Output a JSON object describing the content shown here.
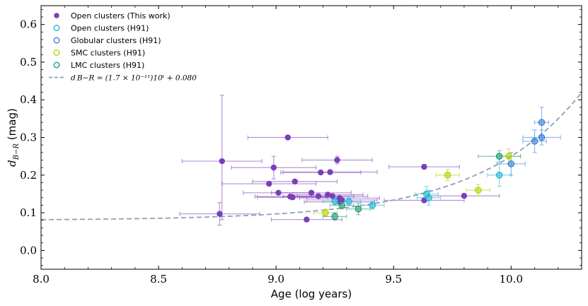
{
  "chart_data": {
    "type": "scatter",
    "xlabel": "Age (log years)",
    "ylabel": "d_{B-R} (mag)",
    "ylabel_main": "d",
    "ylabel_sub": "B−R",
    "ylabel_unit": " (mag)",
    "xlim": [
      8.0,
      10.3
    ],
    "ylim": [
      -0.05,
      0.65
    ],
    "xticks": [
      8.0,
      8.5,
      9.0,
      9.5,
      10.0
    ],
    "xtick_labels": [
      "8.0",
      "8.5",
      "9.0",
      "9.5",
      "10.0"
    ],
    "yticks": [
      0.0,
      0.1,
      0.2,
      0.3,
      0.4,
      0.5,
      0.6
    ],
    "ytick_labels": [
      "0.0",
      "0.1",
      "0.2",
      "0.3",
      "0.4",
      "0.5",
      "0.6"
    ],
    "legend_position": "top-left",
    "series": [
      {
        "name": "Open clusters (This work)",
        "color": "#7b3fb8",
        "marker": "filled",
        "points": [
          {
            "x": 9.05,
            "y": 0.3,
            "xerr": [
              0.17,
              0.17
            ],
            "yerr": [
              0.004,
              0.004
            ]
          },
          {
            "x": 8.77,
            "y": 0.237,
            "xerr": [
              0.17,
              0.17
            ],
            "yerr": [
              0.155,
              0.175
            ]
          },
          {
            "x": 8.76,
            "y": 0.097,
            "xerr": [
              0.17,
              0.17
            ],
            "yerr": [
              0.03,
              0.03
            ]
          },
          {
            "x": 8.99,
            "y": 0.22,
            "xerr": [
              0.18,
              0.18
            ],
            "yerr": [
              0.03,
              0.03
            ]
          },
          {
            "x": 9.26,
            "y": 0.24,
            "xerr": [
              0.15,
              0.15
            ],
            "yerr": [
              0.01,
              0.01
            ]
          },
          {
            "x": 9.19,
            "y": 0.207,
            "xerr": [
              0.17,
              0.17
            ],
            "yerr": [
              0.004,
              0.004
            ]
          },
          {
            "x": 9.23,
            "y": 0.208,
            "xerr": [
              0.2,
              0.2
            ],
            "yerr": [
              0.004,
              0.004
            ]
          },
          {
            "x": 9.08,
            "y": 0.183,
            "xerr": [
              0.18,
              0.18
            ],
            "yerr": [
              0.004,
              0.004
            ]
          },
          {
            "x": 8.97,
            "y": 0.177,
            "xerr": [
              0.2,
              0.2
            ],
            "yerr": [
              0.004,
              0.004
            ]
          },
          {
            "x": 9.01,
            "y": 0.153,
            "xerr": [
              0.15,
              0.15
            ],
            "yerr": [
              0.004,
              0.004
            ]
          },
          {
            "x": 9.15,
            "y": 0.153,
            "xerr": [
              0.17,
              0.17
            ],
            "yerr": [
              0.004,
              0.004
            ]
          },
          {
            "x": 9.22,
            "y": 0.148,
            "xerr": [
              0.15,
              0.15
            ],
            "yerr": [
              0.004,
              0.004
            ]
          },
          {
            "x": 9.18,
            "y": 0.144,
            "xerr": [
              0.15,
              0.15
            ],
            "yerr": [
              0.004,
              0.004
            ]
          },
          {
            "x": 9.24,
            "y": 0.144,
            "xerr": [
              0.15,
              0.15
            ],
            "yerr": [
              0.004,
              0.004
            ]
          },
          {
            "x": 9.06,
            "y": 0.143,
            "xerr": [
              0.15,
              0.15
            ],
            "yerr": [
              0.004,
              0.004
            ]
          },
          {
            "x": 9.07,
            "y": 0.141,
            "xerr": [
              0.15,
              0.15
            ],
            "yerr": [
              0.004,
              0.004
            ]
          },
          {
            "x": 9.27,
            "y": 0.139,
            "xerr": [
              0.17,
              0.17
            ],
            "yerr": [
              0.004,
              0.004
            ]
          },
          {
            "x": 9.28,
            "y": 0.134,
            "xerr": [
              0.15,
              0.15
            ],
            "yerr": [
              0.004,
              0.004
            ]
          },
          {
            "x": 9.27,
            "y": 0.129,
            "xerr": [
              0.15,
              0.15
            ],
            "yerr": [
              0.004,
              0.004
            ]
          },
          {
            "x": 9.13,
            "y": 0.082,
            "xerr": [
              0.15,
              0.15
            ],
            "yerr": [
              0.005,
              0.005
            ]
          },
          {
            "x": 9.63,
            "y": 0.222,
            "xerr": [
              0.15,
              0.15
            ],
            "yerr": [
              0.006,
              0.006
            ]
          },
          {
            "x": 9.63,
            "y": 0.133,
            "xerr": [
              0.17,
              0.17
            ],
            "yerr": [
              0.004,
              0.004
            ]
          },
          {
            "x": 9.8,
            "y": 0.145,
            "xerr": [
              0.15,
              0.15
            ],
            "yerr": [
              0.005,
              0.005
            ]
          }
        ]
      },
      {
        "name": "Open clusters (H91)",
        "color": "#22b8d6",
        "marker": "open",
        "points": [
          {
            "x": 9.25,
            "y": 0.13,
            "xerr": [
              0.05,
              0.05
            ],
            "yerr": [
              0.01,
              0.01
            ]
          },
          {
            "x": 9.31,
            "y": 0.13,
            "xerr": [
              0.05,
              0.05
            ],
            "yerr": [
              0.01,
              0.01
            ]
          },
          {
            "x": 9.41,
            "y": 0.12,
            "xerr": [
              0.05,
              0.05
            ],
            "yerr": [
              0.01,
              0.01
            ]
          },
          {
            "x": 9.64,
            "y": 0.15,
            "xerr": [
              0.05,
              0.05
            ],
            "yerr": [
              0.02,
              0.02
            ]
          },
          {
            "x": 9.65,
            "y": 0.14,
            "xerr": [
              0.05,
              0.05
            ],
            "yerr": [
              0.02,
              0.02
            ]
          },
          {
            "x": 9.95,
            "y": 0.2,
            "xerr": [
              0.05,
              0.05
            ],
            "yerr": [
              0.03,
              0.03
            ]
          }
        ]
      },
      {
        "name": "Globular clusters (H91)",
        "color": "#3a7fd9",
        "marker": "open",
        "points": [
          {
            "x": 10.13,
            "y": 0.34,
            "xerr": [
              0.03,
              0.03
            ],
            "yerr": [
              0.04,
              0.04
            ]
          },
          {
            "x": 10.13,
            "y": 0.3,
            "xerr": [
              0.08,
              0.08
            ],
            "yerr": [
              0.02,
              0.02
            ]
          },
          {
            "x": 10.1,
            "y": 0.29,
            "xerr": [
              0.05,
              0.05
            ],
            "yerr": [
              0.03,
              0.03
            ]
          },
          {
            "x": 10.0,
            "y": 0.23,
            "xerr": [
              0.06,
              0.06
            ],
            "yerr": [
              0.03,
              0.03
            ]
          }
        ]
      },
      {
        "name": "SMC clusters (H91)",
        "color": "#b5d400",
        "marker": "open",
        "points": [
          {
            "x": 9.73,
            "y": 0.2,
            "xerr": [
              0.05,
              0.05
            ],
            "yerr": [
              0.015,
              0.015
            ]
          },
          {
            "x": 9.86,
            "y": 0.16,
            "xerr": [
              0.05,
              0.05
            ],
            "yerr": [
              0.015,
              0.015
            ]
          },
          {
            "x": 9.99,
            "y": 0.25,
            "xerr": [
              0.05,
              0.05
            ],
            "yerr": [
              0.02,
              0.02
            ]
          },
          {
            "x": 9.21,
            "y": 0.1,
            "xerr": [
              0.05,
              0.05
            ],
            "yerr": [
              0.01,
              0.01
            ]
          }
        ]
      },
      {
        "name": "LMC clusters (H91)",
        "color": "#1f9a7a",
        "marker": "open",
        "points": [
          {
            "x": 9.28,
            "y": 0.12,
            "xerr": [
              0.05,
              0.05
            ],
            "yerr": [
              0.01,
              0.01
            ]
          },
          {
            "x": 9.35,
            "y": 0.11,
            "xerr": [
              0.05,
              0.05
            ],
            "yerr": [
              0.015,
              0.015
            ]
          },
          {
            "x": 9.25,
            "y": 0.09,
            "xerr": [
              0.05,
              0.05
            ],
            "yerr": [
              0.01,
              0.01
            ]
          },
          {
            "x": 9.95,
            "y": 0.25,
            "xerr": [
              0.09,
              0.09
            ],
            "yerr": [
              0.015,
              0.015
            ]
          }
        ]
      }
    ],
    "model_curve": {
      "name": "d_{B-R} = (1.7 × 10^{-11}) 10^t + 0.080",
      "label_text": "d B−R = (1.7 × 10⁻¹¹)10ᵗ + 0.080",
      "color": "#8aa2b8",
      "style": "dashed",
      "coefficient": 1.7e-11,
      "offset": 0.08
    }
  }
}
